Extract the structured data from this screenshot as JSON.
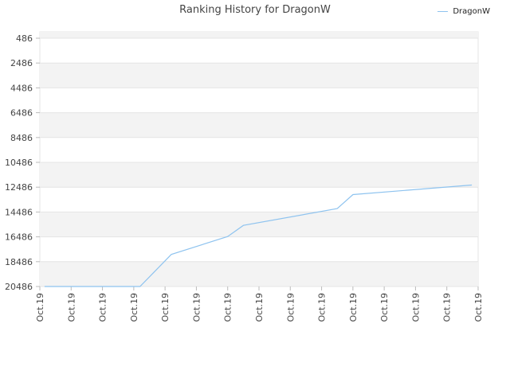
{
  "chart_data": {
    "type": "line",
    "title": "Ranking History for DragonW",
    "xlabel": "",
    "ylabel": "",
    "x_tick_labels": [
      "Oct.19",
      "Oct.19",
      "Oct.19",
      "Oct.19",
      "Oct.19",
      "Oct.19",
      "Oct.19",
      "Oct.19",
      "Oct.19",
      "Oct.19",
      "Oct.19",
      "Oct.19",
      "Oct.19",
      "Oct.19",
      "Oct.19"
    ],
    "y_ticks": [
      486,
      2486,
      4486,
      6486,
      8486,
      10486,
      12486,
      14486,
      16486,
      18486,
      20486
    ],
    "y_tick_labels": [
      "486",
      "2486",
      "4486",
      "6486",
      "8486",
      "10486",
      "12486",
      "14486",
      "16486",
      "18486",
      "20486"
    ],
    "ylim": [
      20486,
      486
    ],
    "y_inverted": true,
    "xlim": [
      0,
      14
    ],
    "grid": true,
    "legend_position": "top-right",
    "series": [
      {
        "name": "DragonW",
        "color": "#8ec3ef",
        "points": [
          [
            0.15,
            20486
          ],
          [
            3.2,
            20486
          ],
          [
            4.2,
            17900
          ],
          [
            6.0,
            16460
          ],
          [
            6.5,
            15560
          ],
          [
            9.5,
            14210
          ],
          [
            10.0,
            13080
          ],
          [
            13.8,
            12310
          ]
        ]
      }
    ]
  }
}
